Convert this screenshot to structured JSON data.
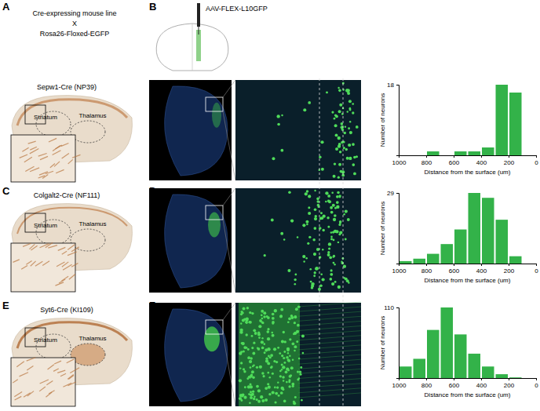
{
  "figure": {
    "header": {
      "label_a": "A",
      "line_text": "Cre-expressing mouse line",
      "cross": "X",
      "reporter": "Rosa26-Floxed-EGFP",
      "label_b": "B",
      "virus": "AAV-FLEX-L10GFP"
    },
    "rows": [
      {
        "line": "Sepw1-Cre (NP39)",
        "striatum": "Striatum",
        "thalamus": "Thalamus"
      },
      {
        "label_left": "C",
        "label_right": "D",
        "line": "Colgalt2-Cre (NF111)",
        "striatum": "Striatum",
        "thalamus": "Thalamus"
      },
      {
        "label_left": "E",
        "label_right": "F",
        "line": "Syt6-Cre (KI109)",
        "striatum": "Striatum",
        "thalamus": "Thalamus"
      }
    ]
  },
  "chart_data": [
    {
      "type": "histogram",
      "xlabel": "Distance from the surface (um)",
      "ylabel": "Number of neurons",
      "bins": [
        1000,
        900,
        800,
        700,
        600,
        500,
        400,
        300,
        200,
        100
      ],
      "counts": [
        0,
        0,
        1,
        0,
        1,
        1,
        2,
        18,
        16
      ],
      "color": "#33b249",
      "xlim": [
        1000,
        0
      ],
      "xticks": [
        1000,
        800,
        600,
        400,
        200,
        0
      ],
      "ylim": [
        0,
        18
      ],
      "yticks": [
        18
      ]
    },
    {
      "type": "histogram",
      "xlabel": "Distance from the surface (um)",
      "ylabel": "Number of neurons",
      "bins": [
        1000,
        900,
        800,
        700,
        600,
        500,
        400,
        300,
        200,
        100
      ],
      "counts": [
        1,
        2,
        4,
        8,
        14,
        29,
        27,
        18,
        3
      ],
      "color": "#33b249",
      "xlim": [
        1000,
        0
      ],
      "xticks": [
        1000,
        800,
        600,
        400,
        200,
        0
      ],
      "ylim": [
        0,
        29
      ],
      "yticks": [
        29
      ]
    },
    {
      "type": "histogram",
      "xlabel": "Distance from the surface (um)",
      "ylabel": "Number of neurons",
      "bins": [
        1000,
        900,
        800,
        700,
        600,
        500,
        400,
        300,
        200,
        100
      ],
      "counts": [
        18,
        30,
        75,
        110,
        68,
        38,
        18,
        6,
        1
      ],
      "color": "#33b249",
      "xlim": [
        1000,
        0
      ],
      "xticks": [
        1000,
        800,
        600,
        400,
        200,
        0
      ],
      "ylim": [
        0,
        110
      ],
      "yticks": [
        110
      ]
    }
  ]
}
